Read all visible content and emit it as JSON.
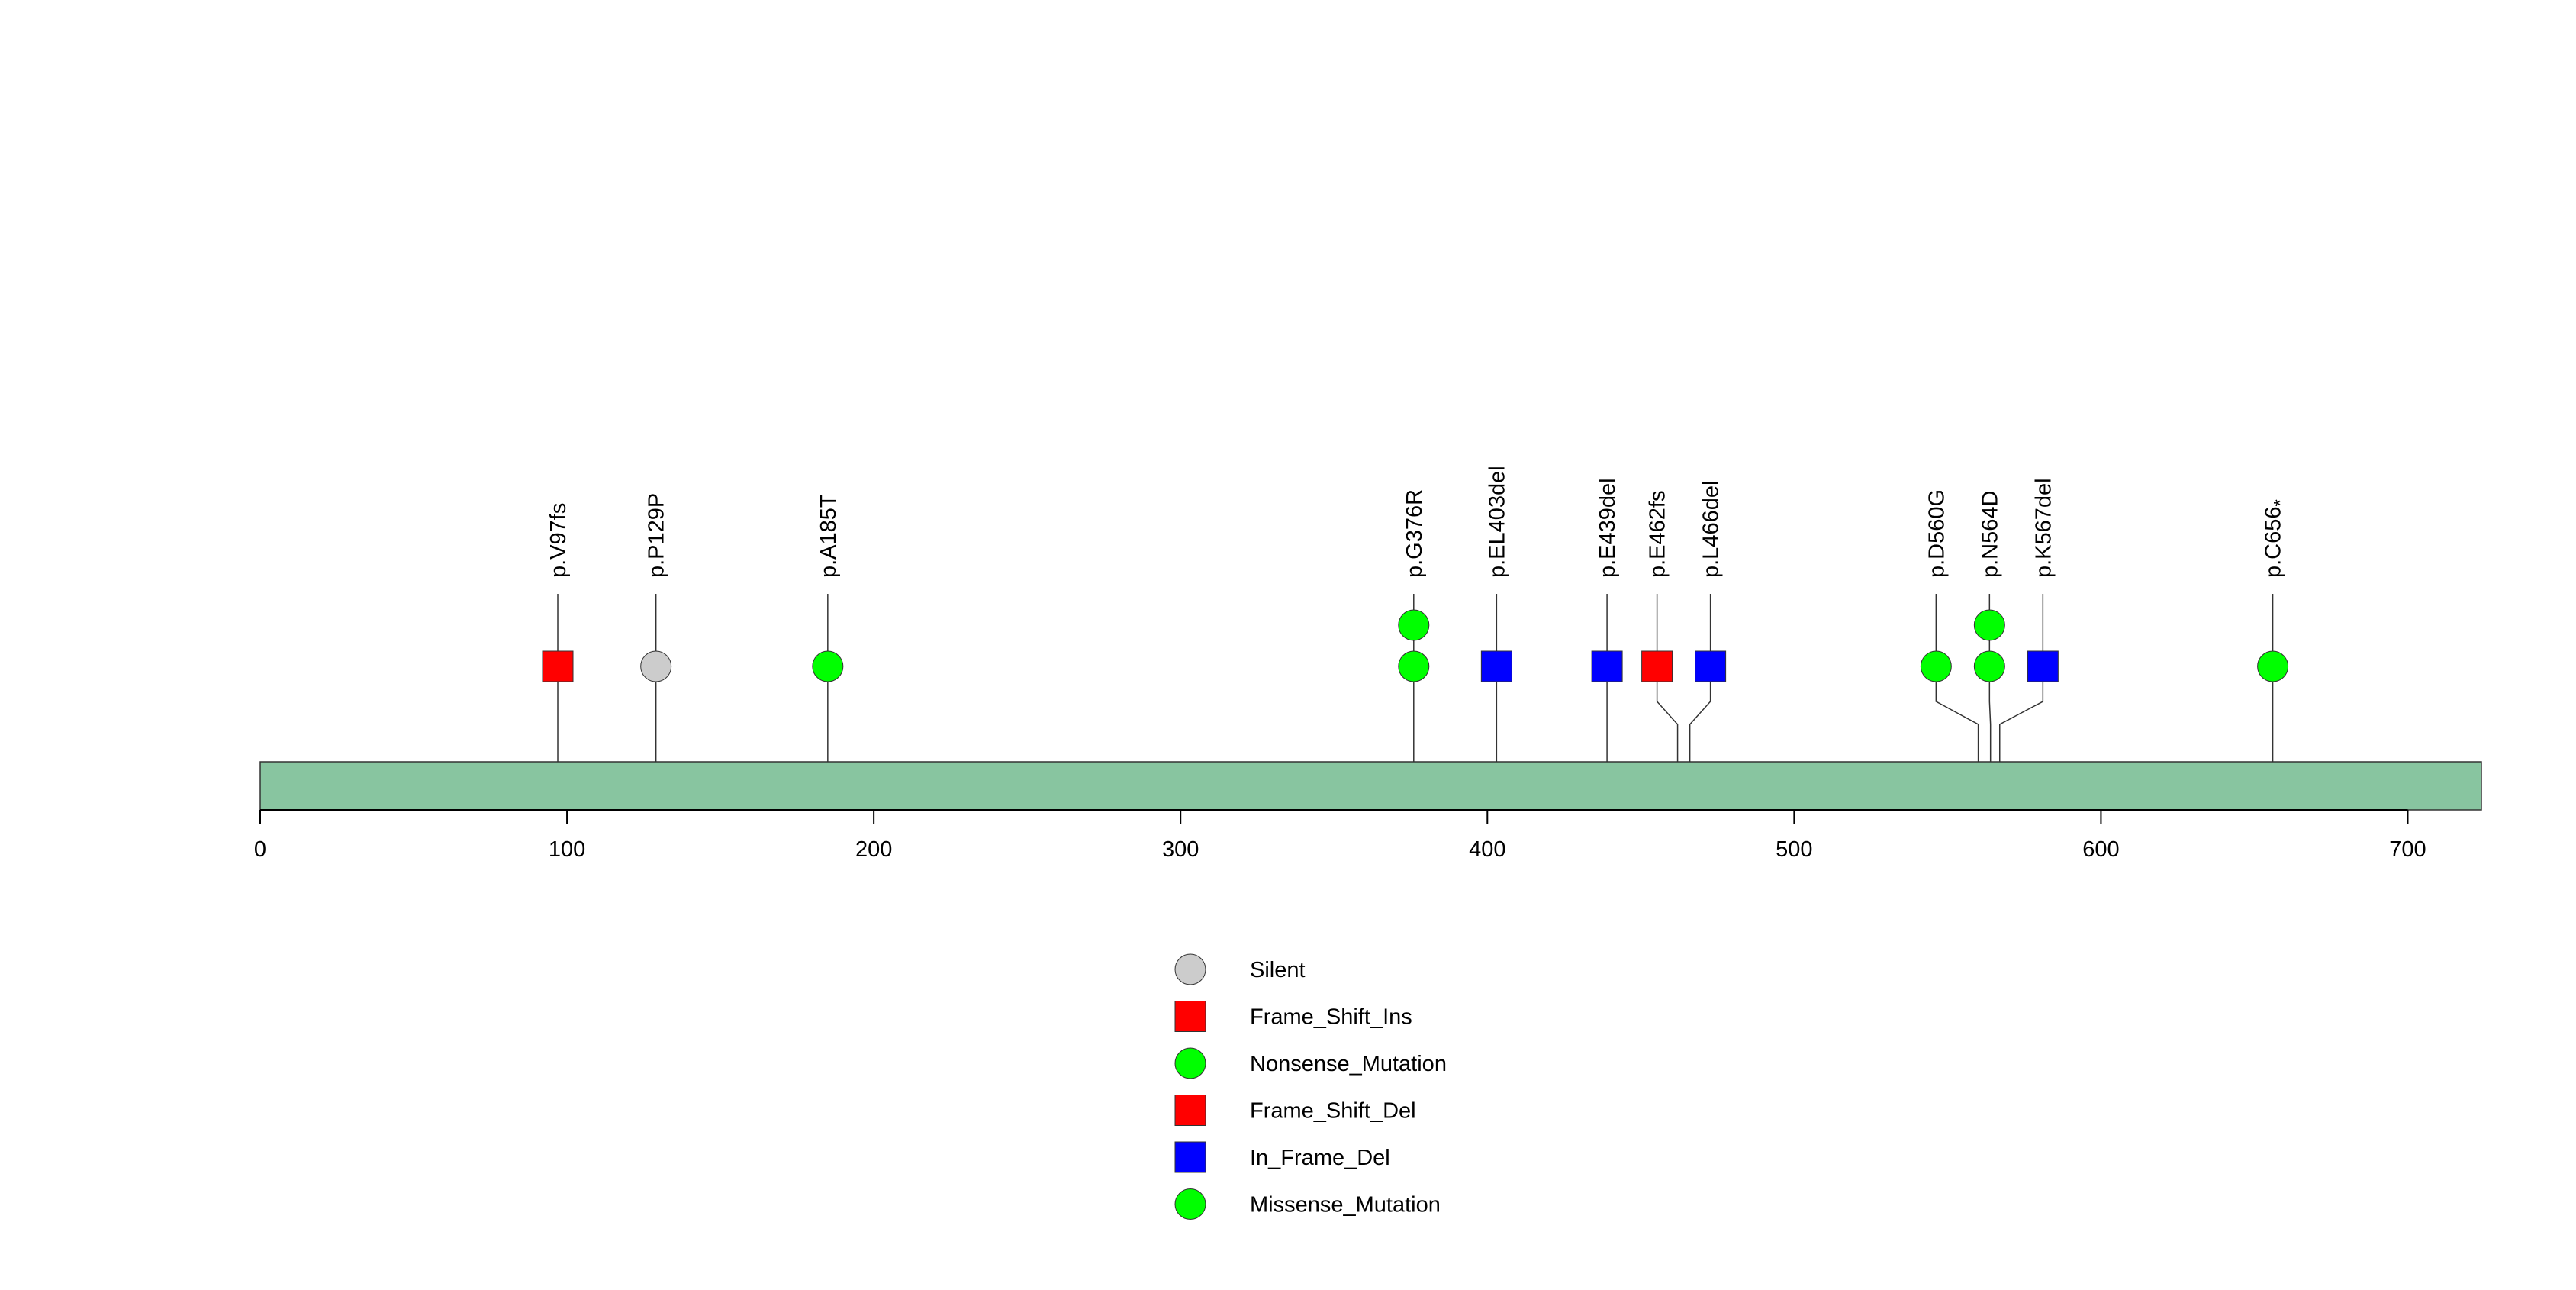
{
  "chart_data": {
    "type": "lollipop",
    "protein_length": 724,
    "xlim": [
      0,
      724
    ],
    "x_ticks": [
      0,
      100,
      200,
      300,
      400,
      500,
      600,
      700
    ],
    "colors": {
      "domain_fill": "#88c5a0",
      "silent": "#cccccc",
      "frame_shift_ins": "#ff0000",
      "nonsense": "#00ff00",
      "frame_shift_del": "#ff0000",
      "in_frame_del": "#0000ff",
      "missense": "#00ff00"
    },
    "mutations": [
      {
        "position": 97,
        "label": "p.V97fs",
        "type": "Frame_Shift_Ins",
        "shape": "square",
        "color": "#ff0000",
        "count": 1
      },
      {
        "position": 129,
        "label": "p.P129P",
        "type": "Silent",
        "shape": "circle",
        "color": "#cccccc",
        "count": 1
      },
      {
        "position": 185,
        "label": "p.A185T",
        "type": "Missense_Mutation",
        "shape": "circle",
        "color": "#00ff00",
        "count": 1
      },
      {
        "position": 376,
        "label": "p.G376R",
        "type": "Missense_Mutation",
        "shape": "circle",
        "color": "#00ff00",
        "count": 2
      },
      {
        "position": 403,
        "label": "p.EL403del",
        "type": "In_Frame_Del",
        "shape": "square",
        "color": "#0000ff",
        "count": 1
      },
      {
        "position": 439,
        "label": "p.E439del",
        "type": "In_Frame_Del",
        "shape": "square",
        "color": "#0000ff",
        "count": 1
      },
      {
        "position": 462,
        "label": "p.E462fs",
        "type": "Frame_Shift_Del",
        "shape": "square",
        "color": "#ff0000",
        "count": 1
      },
      {
        "position": 466,
        "label": "p.L466del",
        "type": "In_Frame_Del",
        "shape": "square",
        "color": "#0000ff",
        "count": 1
      },
      {
        "position": 560,
        "label": "p.D560G",
        "type": "Missense_Mutation",
        "shape": "circle",
        "color": "#00ff00",
        "count": 1
      },
      {
        "position": 564,
        "label": "p.N564D",
        "type": "Missense_Mutation",
        "shape": "circle",
        "color": "#00ff00",
        "count": 2
      },
      {
        "position": 567,
        "label": "p.K567del",
        "type": "In_Frame_Del",
        "shape": "square",
        "color": "#0000ff",
        "count": 1
      },
      {
        "position": 656,
        "label": "p.C656",
        "label_suffix": "*",
        "type": "Nonsense_Mutation",
        "shape": "circle",
        "color": "#00ff00",
        "count": 1
      }
    ],
    "legend": [
      {
        "label": "Silent",
        "shape": "circle",
        "color": "#cccccc"
      },
      {
        "label": "Frame_Shift_Ins",
        "shape": "square",
        "color": "#ff0000"
      },
      {
        "label": "Nonsense_Mutation",
        "shape": "circle",
        "color": "#00ff00"
      },
      {
        "label": "Frame_Shift_Del",
        "shape": "square",
        "color": "#ff0000"
      },
      {
        "label": "In_Frame_Del",
        "shape": "square",
        "color": "#0000ff"
      },
      {
        "label": "Missense_Mutation",
        "shape": "circle",
        "color": "#00ff00"
      }
    ],
    "legend_placement": "bottom-center",
    "grid": false
  }
}
